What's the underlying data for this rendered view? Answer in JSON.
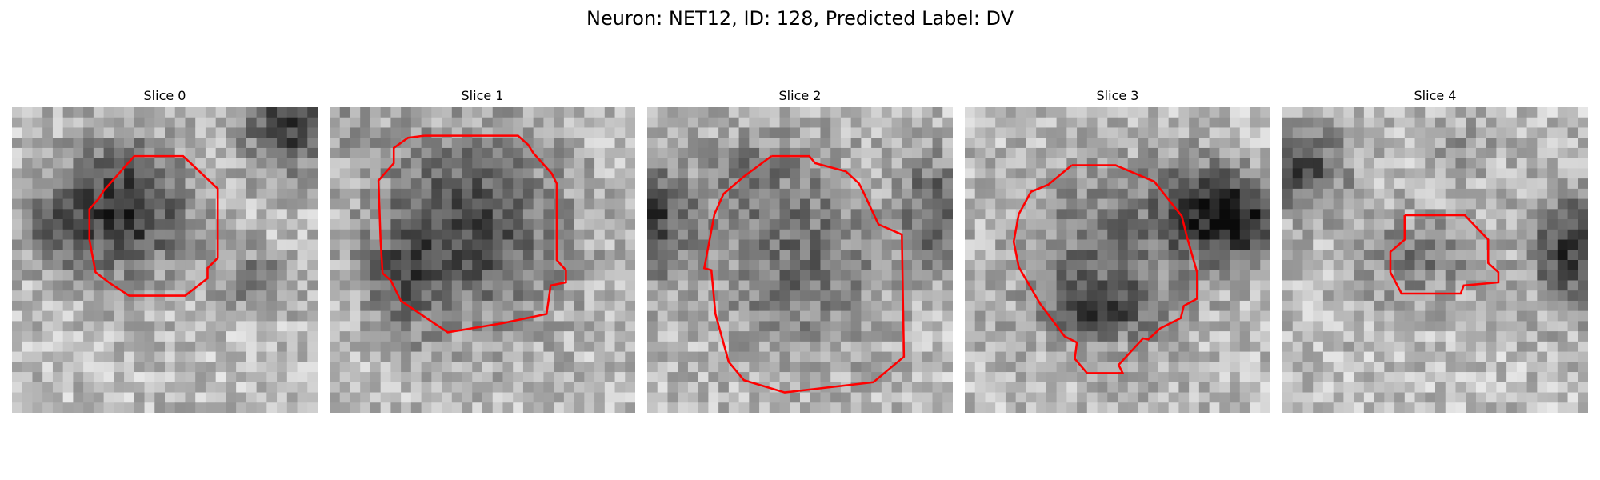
{
  "figure": {
    "title": "Neuron: NET12, ID: 128, Predicted Label: DV"
  },
  "colors": {
    "contour": "#ff0000",
    "background": "#ffffff"
  },
  "panels": [
    {
      "title": "Slice 0"
    },
    {
      "title": "Slice 1"
    },
    {
      "title": "Slice 2"
    },
    {
      "title": "Slice 3"
    },
    {
      "title": "Slice 4"
    }
  ]
}
